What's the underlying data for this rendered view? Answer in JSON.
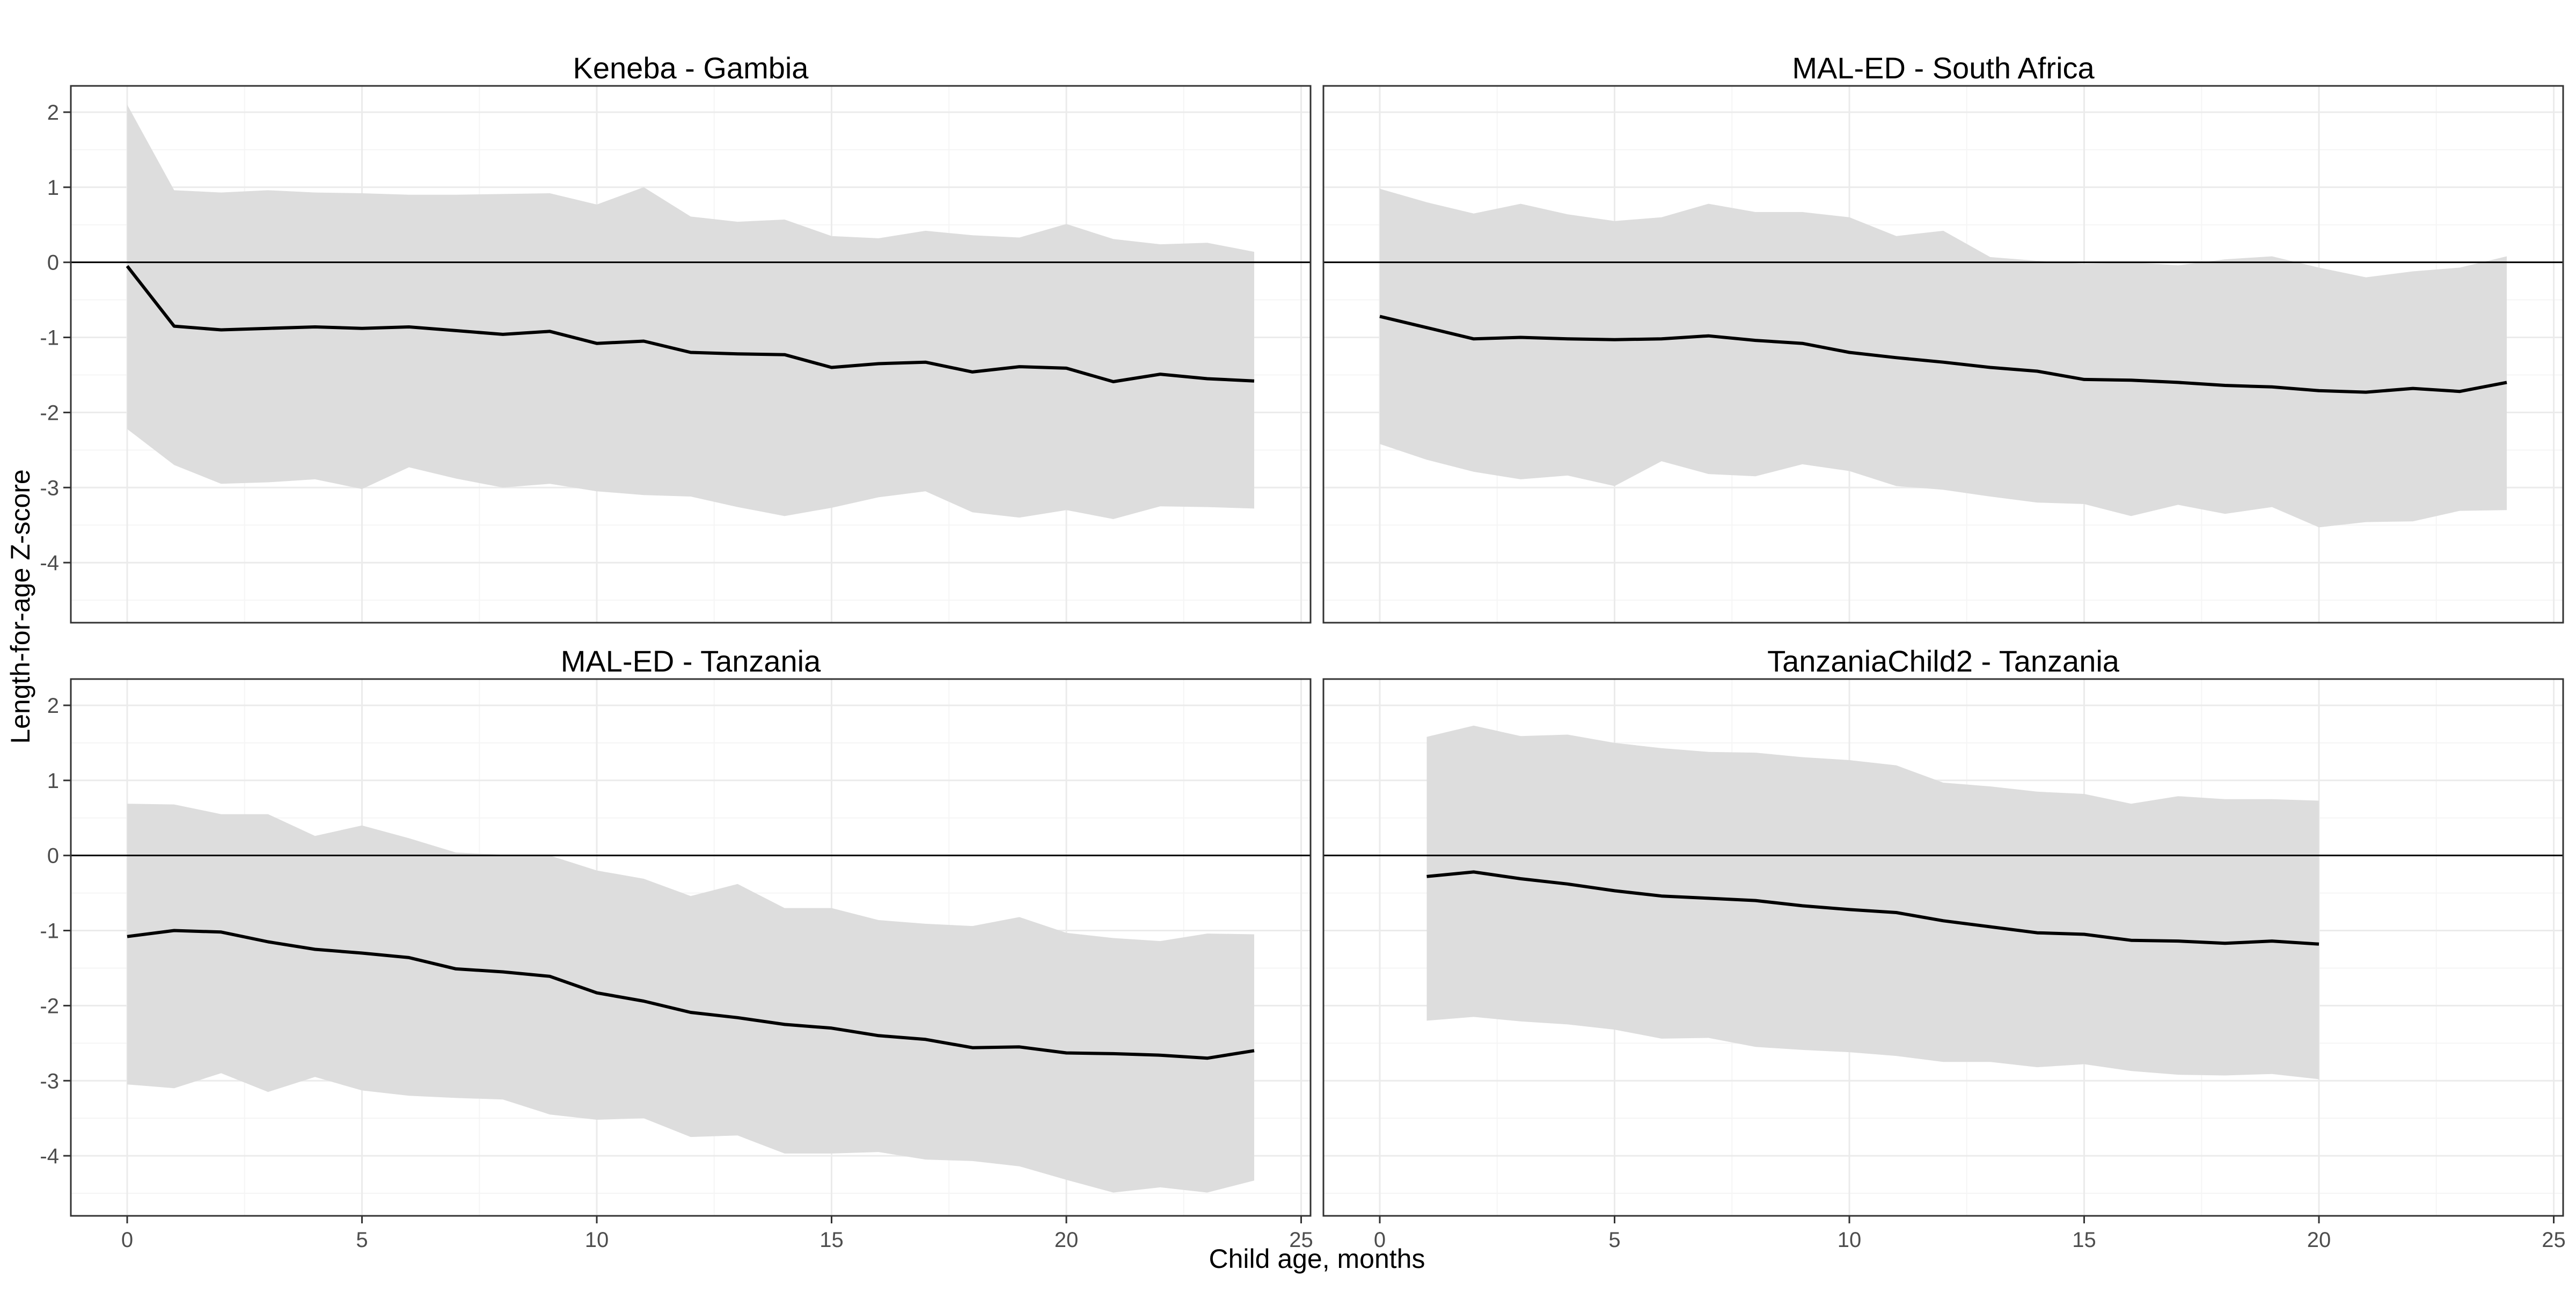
{
  "chart_data": {
    "type": "line",
    "xlabel": "Child age, months",
    "ylabel": "Length-for-age Z-score",
    "xlim": [
      -1.2,
      25.2
    ],
    "ylim": [
      -4.8,
      2.35
    ],
    "xticks": [
      0,
      5,
      10,
      15,
      20,
      25
    ],
    "yticks": [
      -4,
      -3,
      -2,
      -1,
      0,
      1,
      2
    ],
    "grid": true,
    "reference_line_y": 0,
    "panels": [
      {
        "title": "Keneba - Gambia",
        "x": [
          0,
          1,
          2,
          3,
          4,
          5,
          6,
          7,
          8,
          9,
          10,
          11,
          12,
          13,
          14,
          15,
          16,
          17,
          18,
          19,
          20,
          21,
          22,
          23,
          24
        ],
        "mean": [
          -0.05,
          -0.85,
          -0.9,
          -0.88,
          -0.86,
          -0.88,
          -0.86,
          -0.91,
          -0.96,
          -0.92,
          -1.08,
          -1.05,
          -1.2,
          -1.22,
          -1.23,
          -1.4,
          -1.35,
          -1.33,
          -1.46,
          -1.39,
          -1.41,
          -1.59,
          -1.49,
          -1.55,
          -1.58
        ],
        "upper": [
          2.1,
          0.96,
          0.93,
          0.96,
          0.93,
          0.92,
          0.9,
          0.9,
          0.91,
          0.92,
          0.77,
          1.0,
          0.61,
          0.54,
          0.57,
          0.35,
          0.32,
          0.42,
          0.36,
          0.33,
          0.51,
          0.31,
          0.24,
          0.26,
          0.14
        ],
        "lower": [
          -2.22,
          -2.7,
          -2.95,
          -2.93,
          -2.89,
          -3.02,
          -2.73,
          -2.88,
          -3.0,
          -2.95,
          -3.05,
          -3.1,
          -3.12,
          -3.26,
          -3.38,
          -3.27,
          -3.13,
          -3.05,
          -3.33,
          -3.4,
          -3.3,
          -3.42,
          -3.25,
          -3.26,
          -3.28
        ]
      },
      {
        "title": "MAL-ED - South Africa",
        "x": [
          0,
          1,
          2,
          3,
          4,
          5,
          6,
          7,
          8,
          9,
          10,
          11,
          12,
          13,
          14,
          15,
          16,
          17,
          18,
          19,
          20,
          21,
          22,
          23,
          24
        ],
        "mean": [
          -0.72,
          -0.87,
          -1.02,
          -1.0,
          -1.02,
          -1.03,
          -1.02,
          -0.98,
          -1.04,
          -1.08,
          -1.2,
          -1.27,
          -1.33,
          -1.4,
          -1.45,
          -1.56,
          -1.57,
          -1.6,
          -1.64,
          -1.66,
          -1.71,
          -1.73,
          -1.68,
          -1.72,
          -1.6
        ],
        "upper": [
          0.98,
          0.8,
          0.65,
          0.78,
          0.64,
          0.55,
          0.6,
          0.78,
          0.67,
          0.67,
          0.6,
          0.35,
          0.42,
          0.07,
          0.02,
          -0.02,
          0.0,
          -0.04,
          0.04,
          0.08,
          -0.07,
          -0.2,
          -0.12,
          -0.07,
          0.08
        ],
        "lower": [
          -2.42,
          -2.63,
          -2.79,
          -2.89,
          -2.84,
          -2.98,
          -2.65,
          -2.82,
          -2.85,
          -2.69,
          -2.78,
          -2.98,
          -3.03,
          -3.12,
          -3.2,
          -3.22,
          -3.38,
          -3.23,
          -3.35,
          -3.26,
          -3.53,
          -3.46,
          -3.45,
          -3.31,
          -3.3
        ]
      },
      {
        "title": "MAL-ED - Tanzania",
        "x": [
          0,
          1,
          2,
          3,
          4,
          5,
          6,
          7,
          8,
          9,
          10,
          11,
          12,
          13,
          14,
          15,
          16,
          17,
          18,
          19,
          20,
          21,
          22,
          23,
          24
        ],
        "mean": [
          -1.08,
          -1.0,
          -1.02,
          -1.15,
          -1.25,
          -1.3,
          -1.36,
          -1.51,
          -1.55,
          -1.61,
          -1.83,
          -1.94,
          -2.09,
          -2.16,
          -2.25,
          -2.3,
          -2.4,
          -2.45,
          -2.56,
          -2.55,
          -2.63,
          -2.64,
          -2.66,
          -2.7,
          -2.6
        ],
        "upper": [
          0.69,
          0.68,
          0.55,
          0.55,
          0.26,
          0.4,
          0.23,
          0.04,
          0.01,
          0.0,
          -0.2,
          -0.31,
          -0.54,
          -0.38,
          -0.7,
          -0.7,
          -0.86,
          -0.91,
          -0.94,
          -0.82,
          -1.03,
          -1.1,
          -1.14,
          -1.04,
          -1.05
        ],
        "lower": [
          -3.05,
          -3.1,
          -2.9,
          -3.15,
          -2.95,
          -3.13,
          -3.2,
          -3.23,
          -3.25,
          -3.45,
          -3.52,
          -3.5,
          -3.75,
          -3.73,
          -3.97,
          -3.97,
          -3.95,
          -4.05,
          -4.07,
          -4.14,
          -4.32,
          -4.49,
          -4.42,
          -4.49,
          -4.33
        ]
      },
      {
        "title": "TanzaniaChild2 - Tanzania",
        "x": [
          1,
          2,
          3,
          4,
          5,
          6,
          7,
          8,
          9,
          10,
          11,
          12,
          13,
          14,
          15,
          16,
          17,
          18,
          19,
          20
        ],
        "mean": [
          -0.28,
          -0.22,
          -0.31,
          -0.38,
          -0.47,
          -0.54,
          -0.57,
          -0.6,
          -0.67,
          -0.72,
          -0.76,
          -0.87,
          -0.95,
          -1.03,
          -1.05,
          -1.13,
          -1.14,
          -1.17,
          -1.14,
          -1.18
        ],
        "upper": [
          1.58,
          1.73,
          1.59,
          1.61,
          1.5,
          1.43,
          1.38,
          1.37,
          1.31,
          1.27,
          1.2,
          0.97,
          0.92,
          0.85,
          0.82,
          0.69,
          0.79,
          0.75,
          0.75,
          0.73
        ],
        "lower": [
          -2.2,
          -2.15,
          -2.21,
          -2.25,
          -2.32,
          -2.44,
          -2.43,
          -2.55,
          -2.59,
          -2.62,
          -2.67,
          -2.75,
          -2.75,
          -2.82,
          -2.78,
          -2.87,
          -2.92,
          -2.93,
          -2.91,
          -2.98
        ]
      }
    ]
  },
  "colors": {
    "ribbon": "#dddddd",
    "line": "#000000",
    "panel_border": "#333333",
    "grid_major": "#ebebeb",
    "grid_minor": "#f5f5f5",
    "tick_text": "#4d4d4d",
    "reference_line": "#000000"
  }
}
